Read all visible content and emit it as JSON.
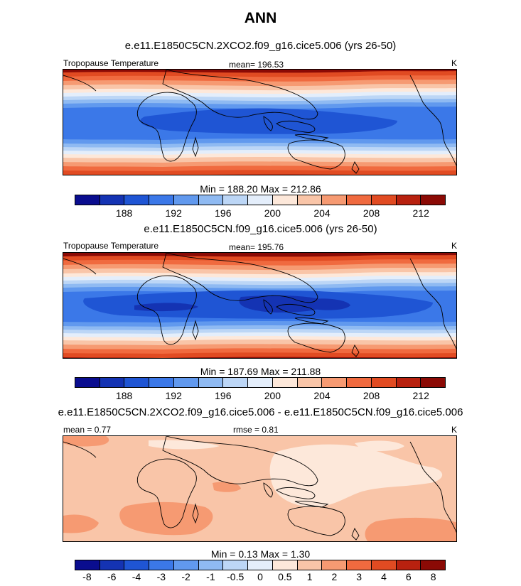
{
  "title": "ANN",
  "panels": [
    {
      "case_title": "e.e11.E1850C5CN.2XCO2.f09_g16.cice5.006 (yrs 26-50)",
      "left_label": "Tropopause Temperature",
      "center_label": "mean= 196.53",
      "right_label": "K",
      "minmax": "Min = 188.20 Max = 212.86",
      "colorbar_labels": [
        "188",
        "192",
        "196",
        "200",
        "204",
        "208",
        "212"
      ]
    },
    {
      "case_title": "e.e11.E1850C5CN.f09_g16.cice5.006 (yrs 26-50)",
      "left_label": "Tropopause Temperature",
      "center_label": "mean= 195.76",
      "right_label": "K",
      "minmax": "Min = 187.69 Max = 211.88",
      "colorbar_labels": [
        "188",
        "192",
        "196",
        "200",
        "204",
        "208",
        "212"
      ]
    },
    {
      "case_title": "e.e11.E1850C5CN.2XCO2.f09_g16.cice5.006 - e.e11.E1850C5CN.f09_g16.cice5.006",
      "left_label": "mean =   0.77",
      "center_label": "rmse =   0.81",
      "right_label": "K",
      "minmax": "Min =   0.13 Max =   1.30",
      "colorbar_labels": [
        "-8",
        "-6",
        "-4",
        "-3",
        "-2",
        "-1",
        "-0.5",
        "0",
        "0.5",
        "1",
        "2",
        "3",
        "4",
        "6",
        "8"
      ]
    }
  ],
  "palette": [
    "#0a0d8f",
    "#1433b3",
    "#1f55d4",
    "#3b78e8",
    "#6199ee",
    "#8fbaf2",
    "#bcd6f6",
    "#e4eefb",
    "#fde8da",
    "#f9c5a8",
    "#f69a72",
    "#f06a3f",
    "#e14b22",
    "#b8210f",
    "#8b0a05"
  ],
  "chart_data": [
    {
      "type": "heatmap",
      "title": "e.e11.E1850C5CN.2XCO2.f09_g16.cice5.006 (yrs 26-50)",
      "variable": "Tropopause Temperature",
      "units": "K",
      "mean": 196.53,
      "min": 188.2,
      "max": 212.86,
      "contour_levels": [
        186,
        188,
        190,
        192,
        194,
        196,
        198,
        200,
        202,
        204,
        206,
        208,
        210,
        212,
        214
      ],
      "colorbar_ticks": [
        188,
        192,
        196,
        200,
        204,
        208,
        212
      ]
    },
    {
      "type": "heatmap",
      "title": "e.e11.E1850C5CN.f09_g16.cice5.006 (yrs 26-50)",
      "variable": "Tropopause Temperature",
      "units": "K",
      "mean": 195.76,
      "min": 187.69,
      "max": 211.88,
      "contour_levels": [
        186,
        188,
        190,
        192,
        194,
        196,
        198,
        200,
        202,
        204,
        206,
        208,
        210,
        212,
        214
      ],
      "colorbar_ticks": [
        188,
        192,
        196,
        200,
        204,
        208,
        212
      ]
    },
    {
      "type": "heatmap",
      "title": "e.e11.E1850C5CN.2XCO2.f09_g16.cice5.006 - e.e11.E1850C5CN.f09_g16.cice5.006",
      "units": "K",
      "mean": 0.77,
      "rmse": 0.81,
      "min": 0.13,
      "max": 1.3,
      "contour_levels": [
        -8,
        -6,
        -4,
        -3,
        -2,
        -1,
        -0.5,
        0,
        0.5,
        1,
        2,
        3,
        4,
        6,
        8
      ],
      "colorbar_ticks": [
        -8,
        -6,
        -4,
        -3,
        -2,
        -1,
        -0.5,
        0,
        0.5,
        1,
        2,
        3,
        4,
        6,
        8
      ]
    }
  ]
}
